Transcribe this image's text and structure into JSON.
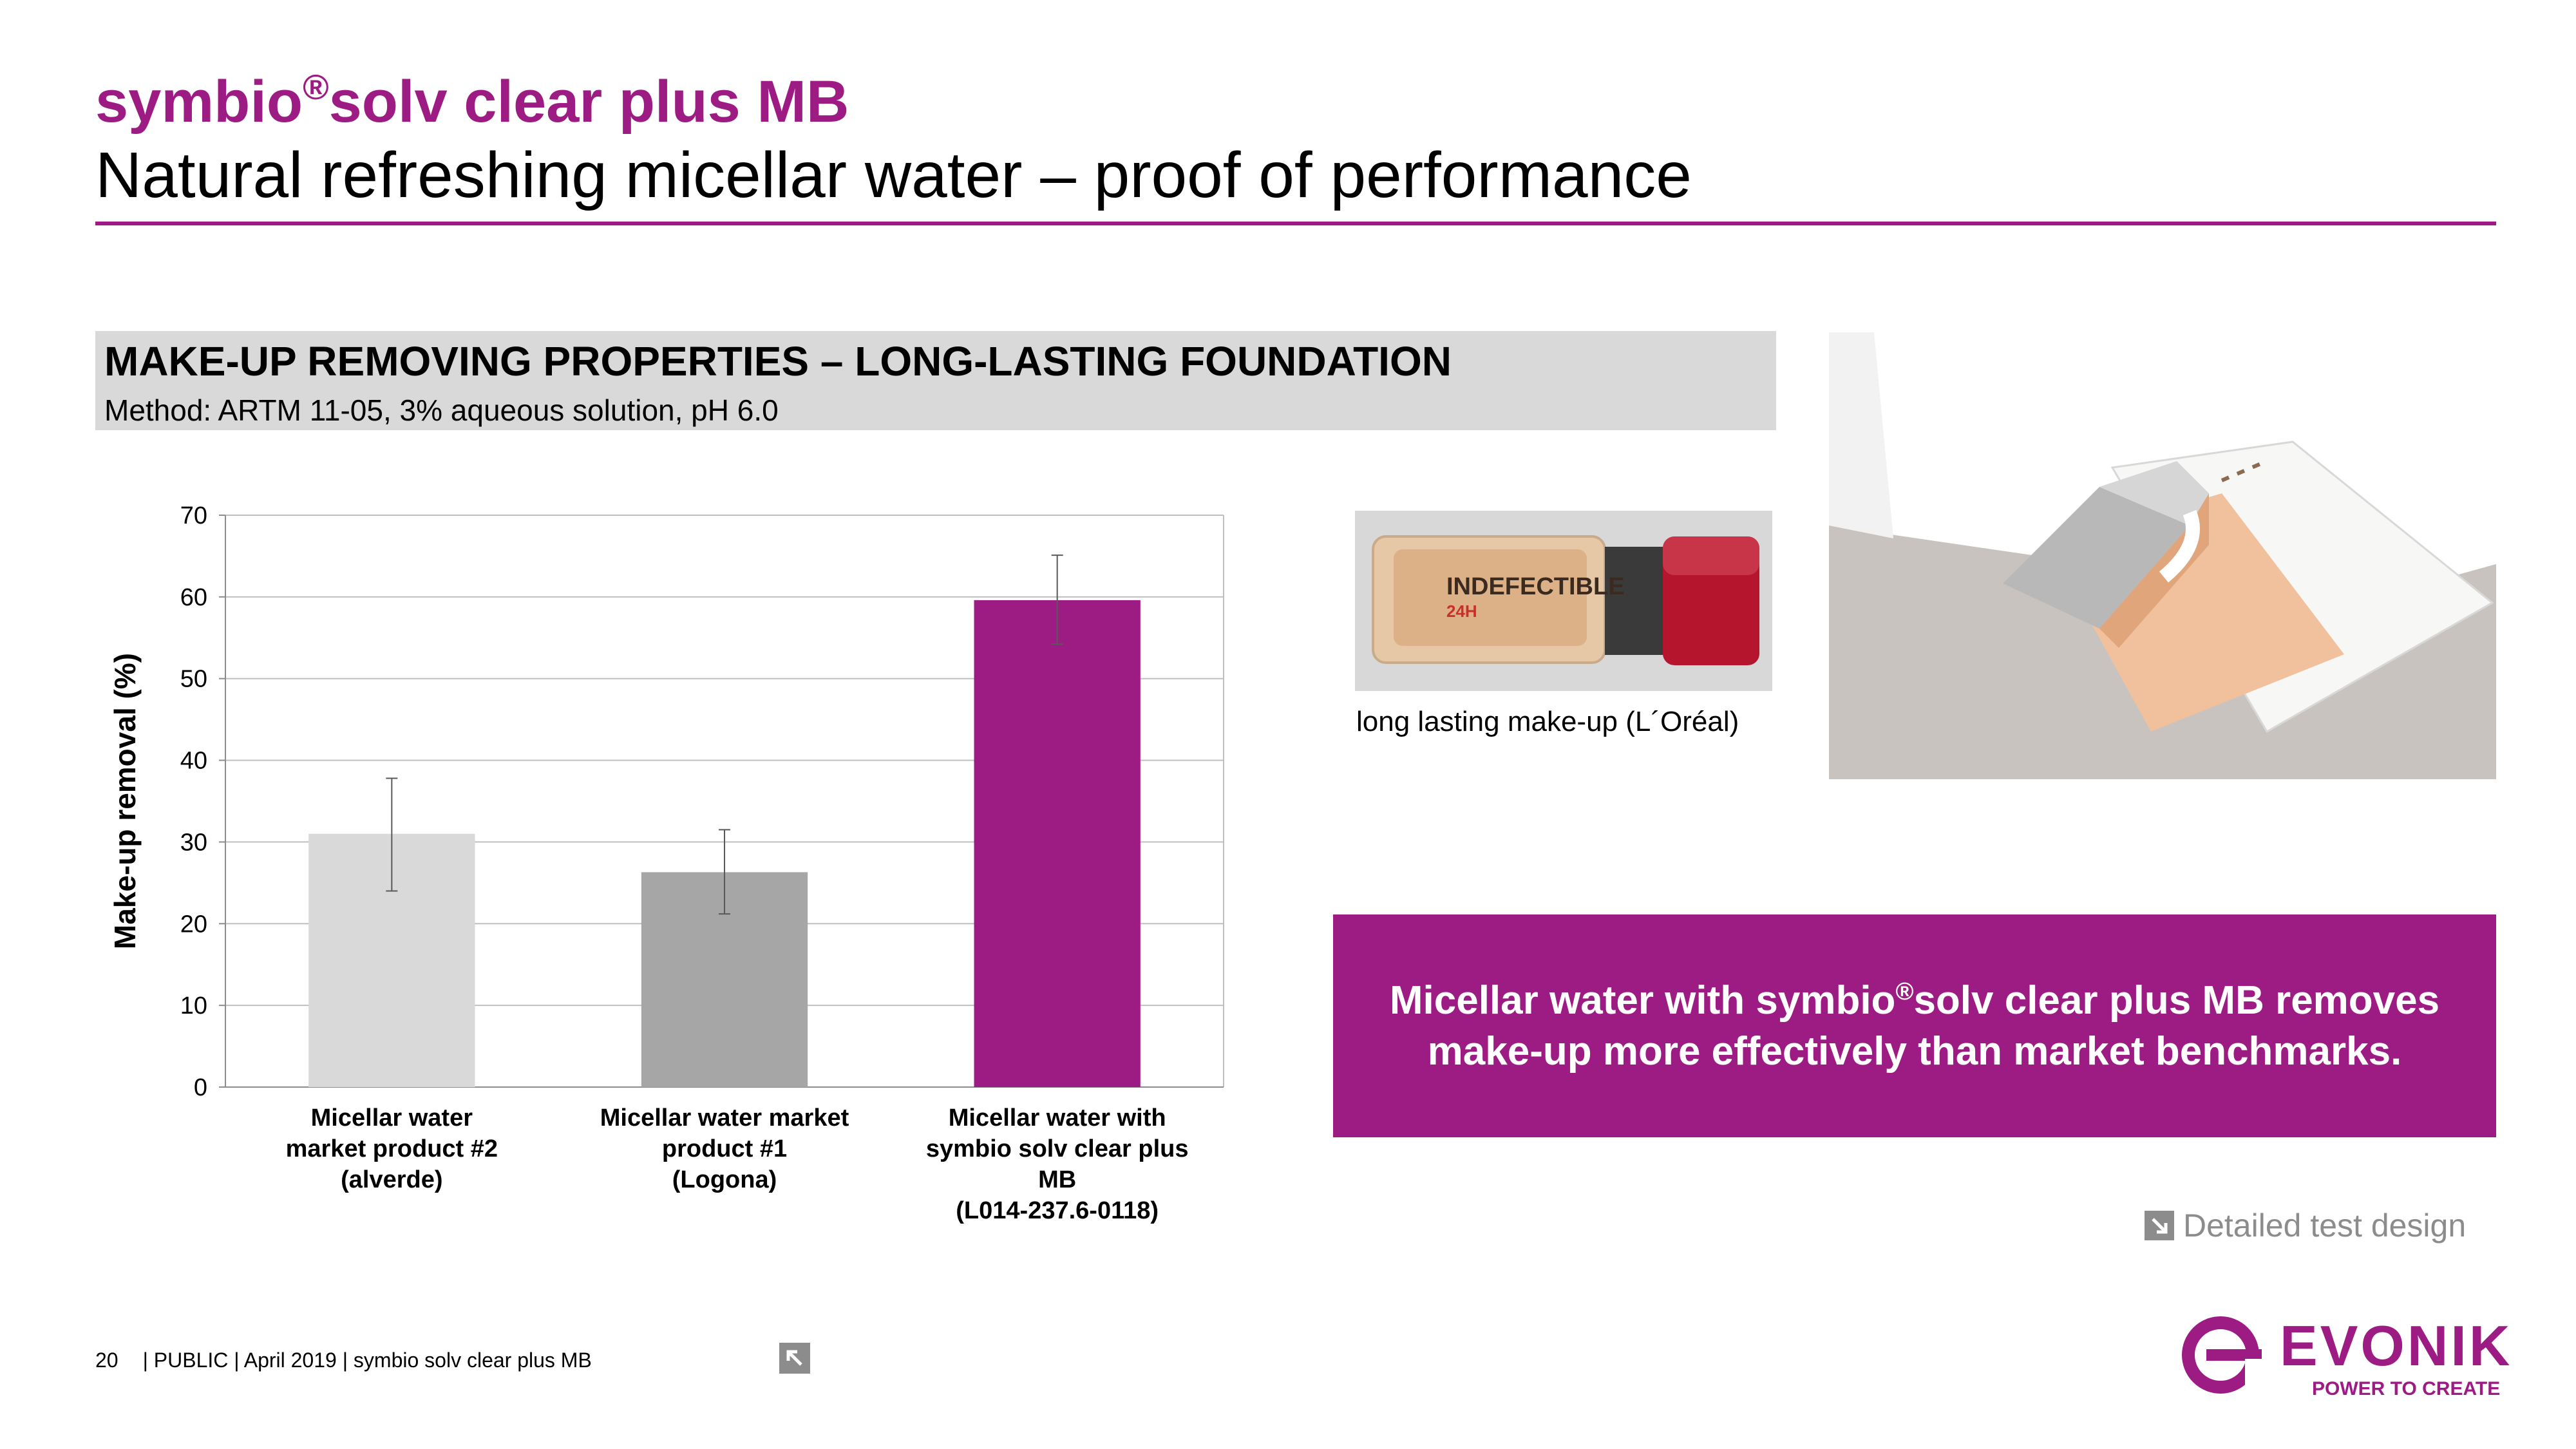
{
  "header": {
    "title_pre": "symbio",
    "title_reg": "®",
    "title_post": "solv clear plus MB",
    "subtitle": "Natural refreshing micellar water – proof of performance"
  },
  "section": {
    "heading": "MAKE-UP REMOVING PROPERTIES – LONG-LASTING FOUNDATION",
    "method": "Method: ARTM 11-05, 3% aqueous solution, pH 6.0"
  },
  "chart_data": {
    "type": "bar",
    "title": "",
    "xlabel": "",
    "ylabel": "Make-up removal (%)",
    "ylim": [
      0,
      70
    ],
    "yticks": [
      0,
      10,
      20,
      30,
      40,
      50,
      60,
      70
    ],
    "grid": true,
    "categories": [
      [
        "Micellar water",
        "market product #2",
        "(alverde)"
      ],
      [
        "Micellar water market",
        "product #1",
        "(Logona)"
      ],
      [
        "Micellar water with",
        "symbio solv clear plus",
        "MB",
        "(L014-237.6-0118)"
      ]
    ],
    "values": [
      31,
      26.3,
      59.6
    ],
    "error_bars": [
      {
        "low": 24,
        "high": 37.8
      },
      {
        "low": 21.2,
        "high": 31.5
      },
      {
        "low": 54.2,
        "high": 65.1
      }
    ],
    "colors": [
      "#d9d9d9",
      "#a6a6a6",
      "#9c1c84"
    ]
  },
  "images": {
    "product_caption": "long lasting make-up (L´Oréal)",
    "product_label": "INDEFECTIBLE",
    "product_sub": "24H"
  },
  "callout": {
    "line1_pre": "Micellar water with symbio",
    "line1_reg": "®",
    "line1_post": "solv clear plus MB removes",
    "line2": "make-up more effectively than market benchmarks."
  },
  "link": {
    "label": "Detailed test design"
  },
  "footer": {
    "page": "20",
    "text": "| PUBLIC | April 2019 | symbio solv clear plus MB"
  },
  "logo": {
    "name": "EVONIK",
    "tagline": "POWER TO CREATE"
  },
  "colors": {
    "brand": "#9c1c84",
    "grey_box": "#d9d9d9",
    "link_grey": "#8c8c8c"
  }
}
